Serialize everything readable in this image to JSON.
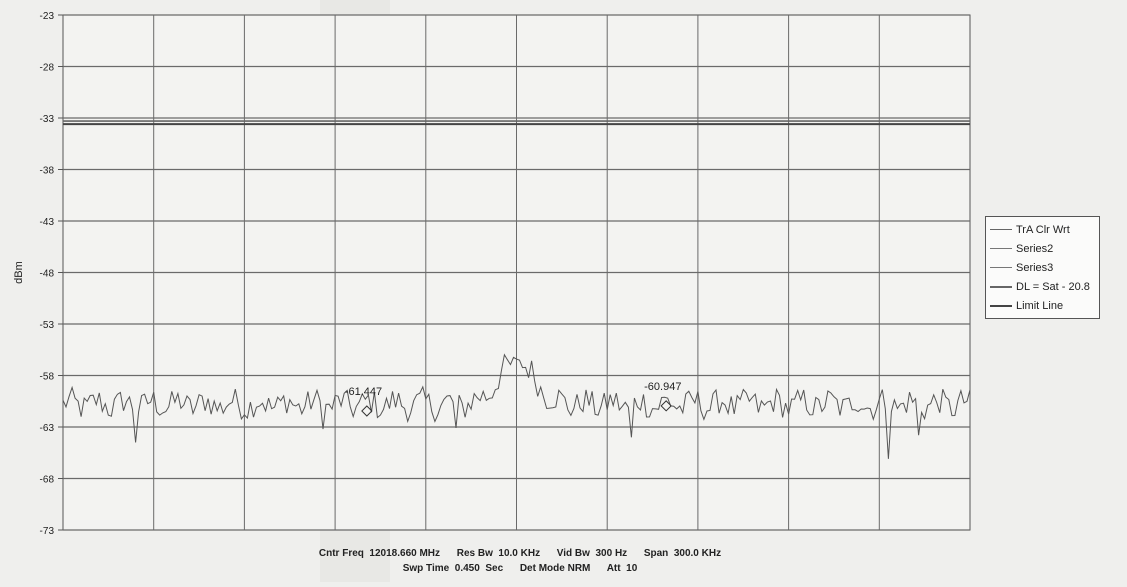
{
  "chart_data": {
    "type": "line",
    "ylabel": "dBm",
    "xlabel": "",
    "ylim": [
      -73,
      -23
    ],
    "y_ticks": [
      -23,
      -28,
      -33,
      -38,
      -43,
      -48,
      -53,
      -58,
      -63,
      -68,
      -73
    ],
    "grid": true,
    "legend_position": "right",
    "series": [
      {
        "name": "TrA Clr Wrt",
        "color": "#555555",
        "points": 301,
        "noise_floor_dbm": -60.8,
        "peak_dbm": -56.5,
        "dips_dbm": [
          -64.5,
          -63.2,
          -63.1,
          -64.0,
          -66.1,
          -63.8
        ]
      },
      {
        "name": "Series2",
        "color": "#777777"
      },
      {
        "name": "Series3",
        "color": "#777777"
      },
      {
        "name": "DL = Sat - 20.8",
        "color": "#666666",
        "value_dbm": -33.3
      },
      {
        "name": "Limit Line",
        "color": "#444444",
        "value_dbm": -33.6
      }
    ],
    "markers": [
      {
        "label": "-61.447",
        "value_dbm": -61.447
      },
      {
        "label": "-60.947",
        "value_dbm": -60.947
      }
    ]
  },
  "legend": {
    "items": [
      {
        "label": "TrA Clr Wrt",
        "color": "#666666",
        "width": 1
      },
      {
        "label": "Series2",
        "color": "#777777",
        "width": 1
      },
      {
        "label": "Series3",
        "color": "#777777",
        "width": 1
      },
      {
        "label": "DL = Sat - 20.8",
        "color": "#666666",
        "width": 2
      },
      {
        "label": "Limit Line",
        "color": "#444444",
        "width": 2
      }
    ]
  },
  "footer": {
    "cntr_freq": "Cntr Freq  12018.660 MHz",
    "res_bw": "Res Bw  10.0 KHz",
    "vid_bw": "Vid Bw  300 Hz",
    "span": "Span  300.0 KHz",
    "swp_time": "Swp Time  0.450  Sec",
    "det_mode": "Det Mode NRM",
    "att": "Att  10"
  }
}
